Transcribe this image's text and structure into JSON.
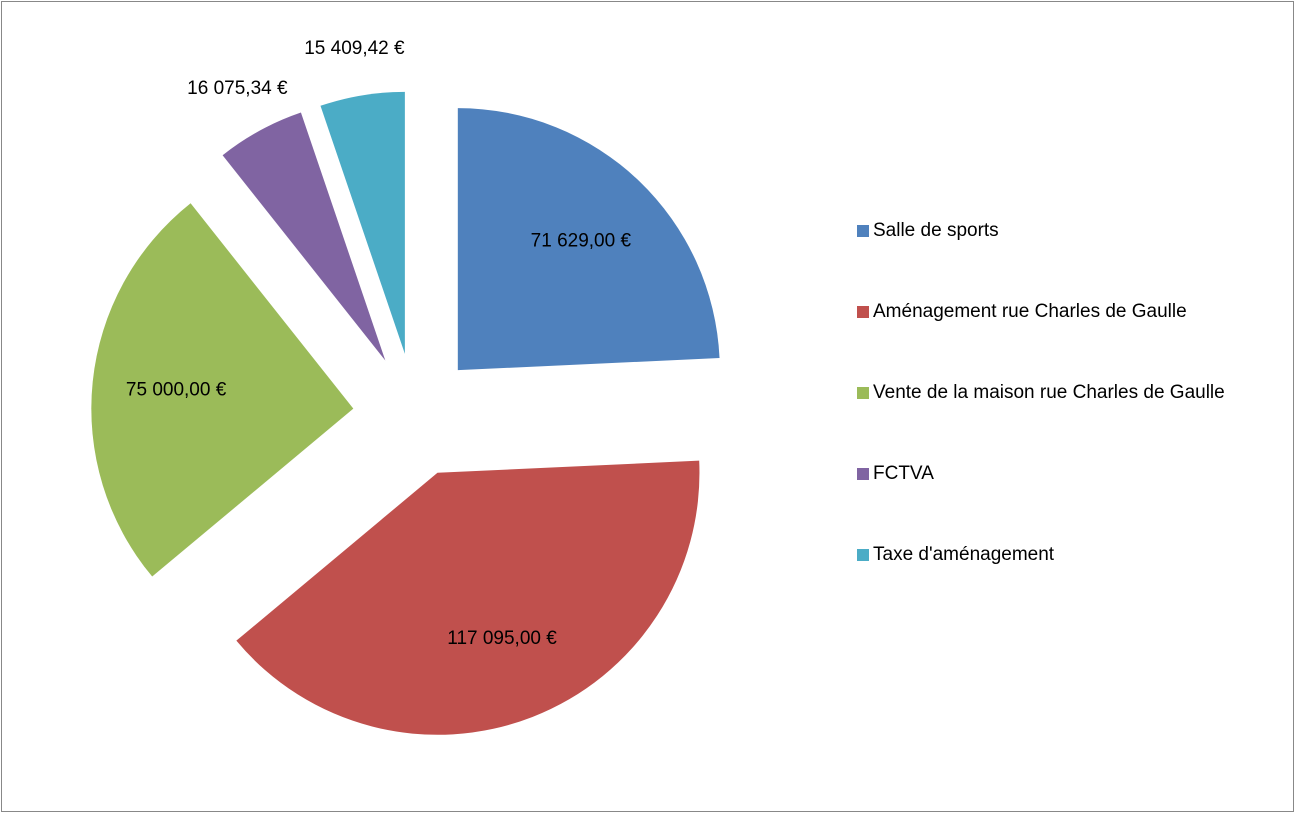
{
  "chart_data": {
    "type": "pie",
    "categories": [
      "Salle de sports",
      "Aménagement rue Charles de Gaulle",
      "Vente de la maison rue Charles de Gaulle",
      "FCTVA",
      "Taxe d'aménagement"
    ],
    "values": [
      71629,
      117095,
      75000,
      16075.34,
      15409.42
    ],
    "value_labels": [
      "71 629,00 €",
      "117 095,00 €",
      "75 000,00 €",
      "16 075,34 €",
      "15 409,42 €"
    ],
    "colors": [
      "#4f81bd",
      "#c0504d",
      "#9bbb59",
      "#8064a2",
      "#4bacc6"
    ],
    "legend": "right"
  }
}
